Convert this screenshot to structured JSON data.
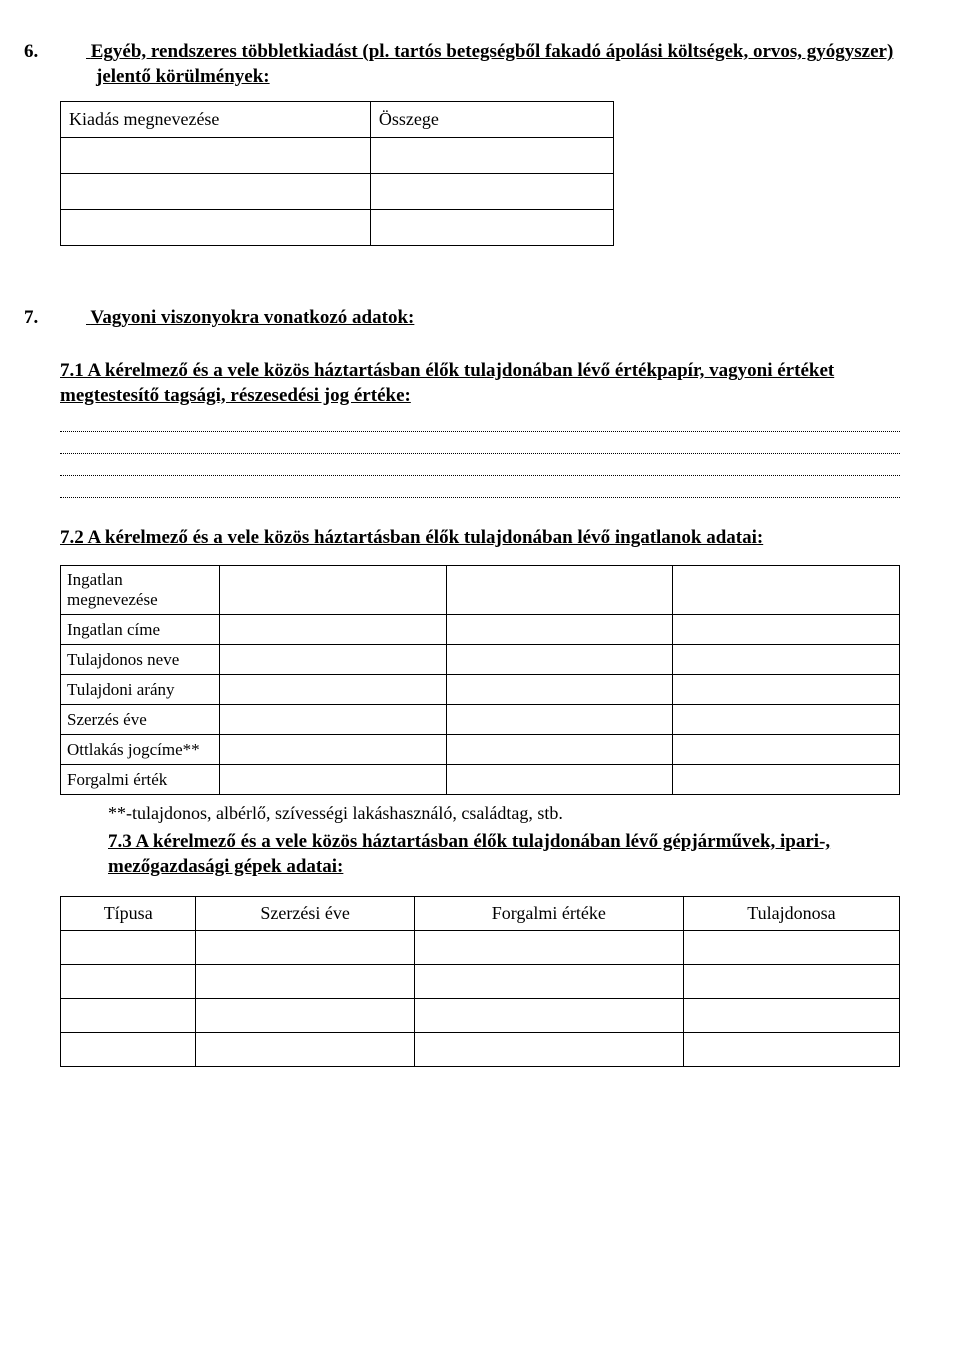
{
  "section6": {
    "heading_num": "6.",
    "heading_text": "Egyéb, rendszeres többletkiadást (pl. tartós betegségből fakadó ápolási költségek, orvos, gyógyszer) jelentő körülmények:",
    "table": {
      "col1": "Kiadás megnevezése",
      "col2": "Összege",
      "rows": [
        "",
        "",
        ""
      ]
    }
  },
  "section7": {
    "heading_num": "7.",
    "heading_text": " Vagyoni viszonyokra vonatkozó adatok:",
    "sub71": {
      "text": "7.1 A kérelmező és a vele közös háztartásban élők tulajdonában lévő értékpapír, vagyoni értéket megtestesítő tagsági, részesedési jog értéke:",
      "blank_line_count": 4
    },
    "sub72": {
      "text": "7.2 A kérelmező és a vele közös háztartásban élők tulajdonában lévő ingatlanok adatai:",
      "rows": [
        "Ingatlan megnevezése",
        "Ingatlan címe",
        "Tulajdonos neve",
        "Tulajdoni arány",
        "Szerzés éve",
        "Ottlakás jogcíme**",
        "Forgalmi érték"
      ],
      "value_cols": 3,
      "footnote": "**-tulajdonos, albérlő, szívességi lakáshasználó, családtag, stb."
    },
    "sub73": {
      "text": "7.3 A kérelmező és a vele közös háztartásban élők tulajdonában lévő gépjárművek, ipari-, mezőgazdasági gépek adatai:",
      "headers": [
        "Típusa",
        "Szerzési éve",
        "Forgalmi értéke",
        "Tulajdonosa"
      ],
      "blank_rows": 4
    }
  },
  "colors": {
    "text": "#000000",
    "background": "#ffffff",
    "border": "#000000"
  },
  "typography": {
    "font_family": "Times New Roman",
    "heading_fontsize_pt": 14,
    "body_fontsize_pt": 13
  }
}
